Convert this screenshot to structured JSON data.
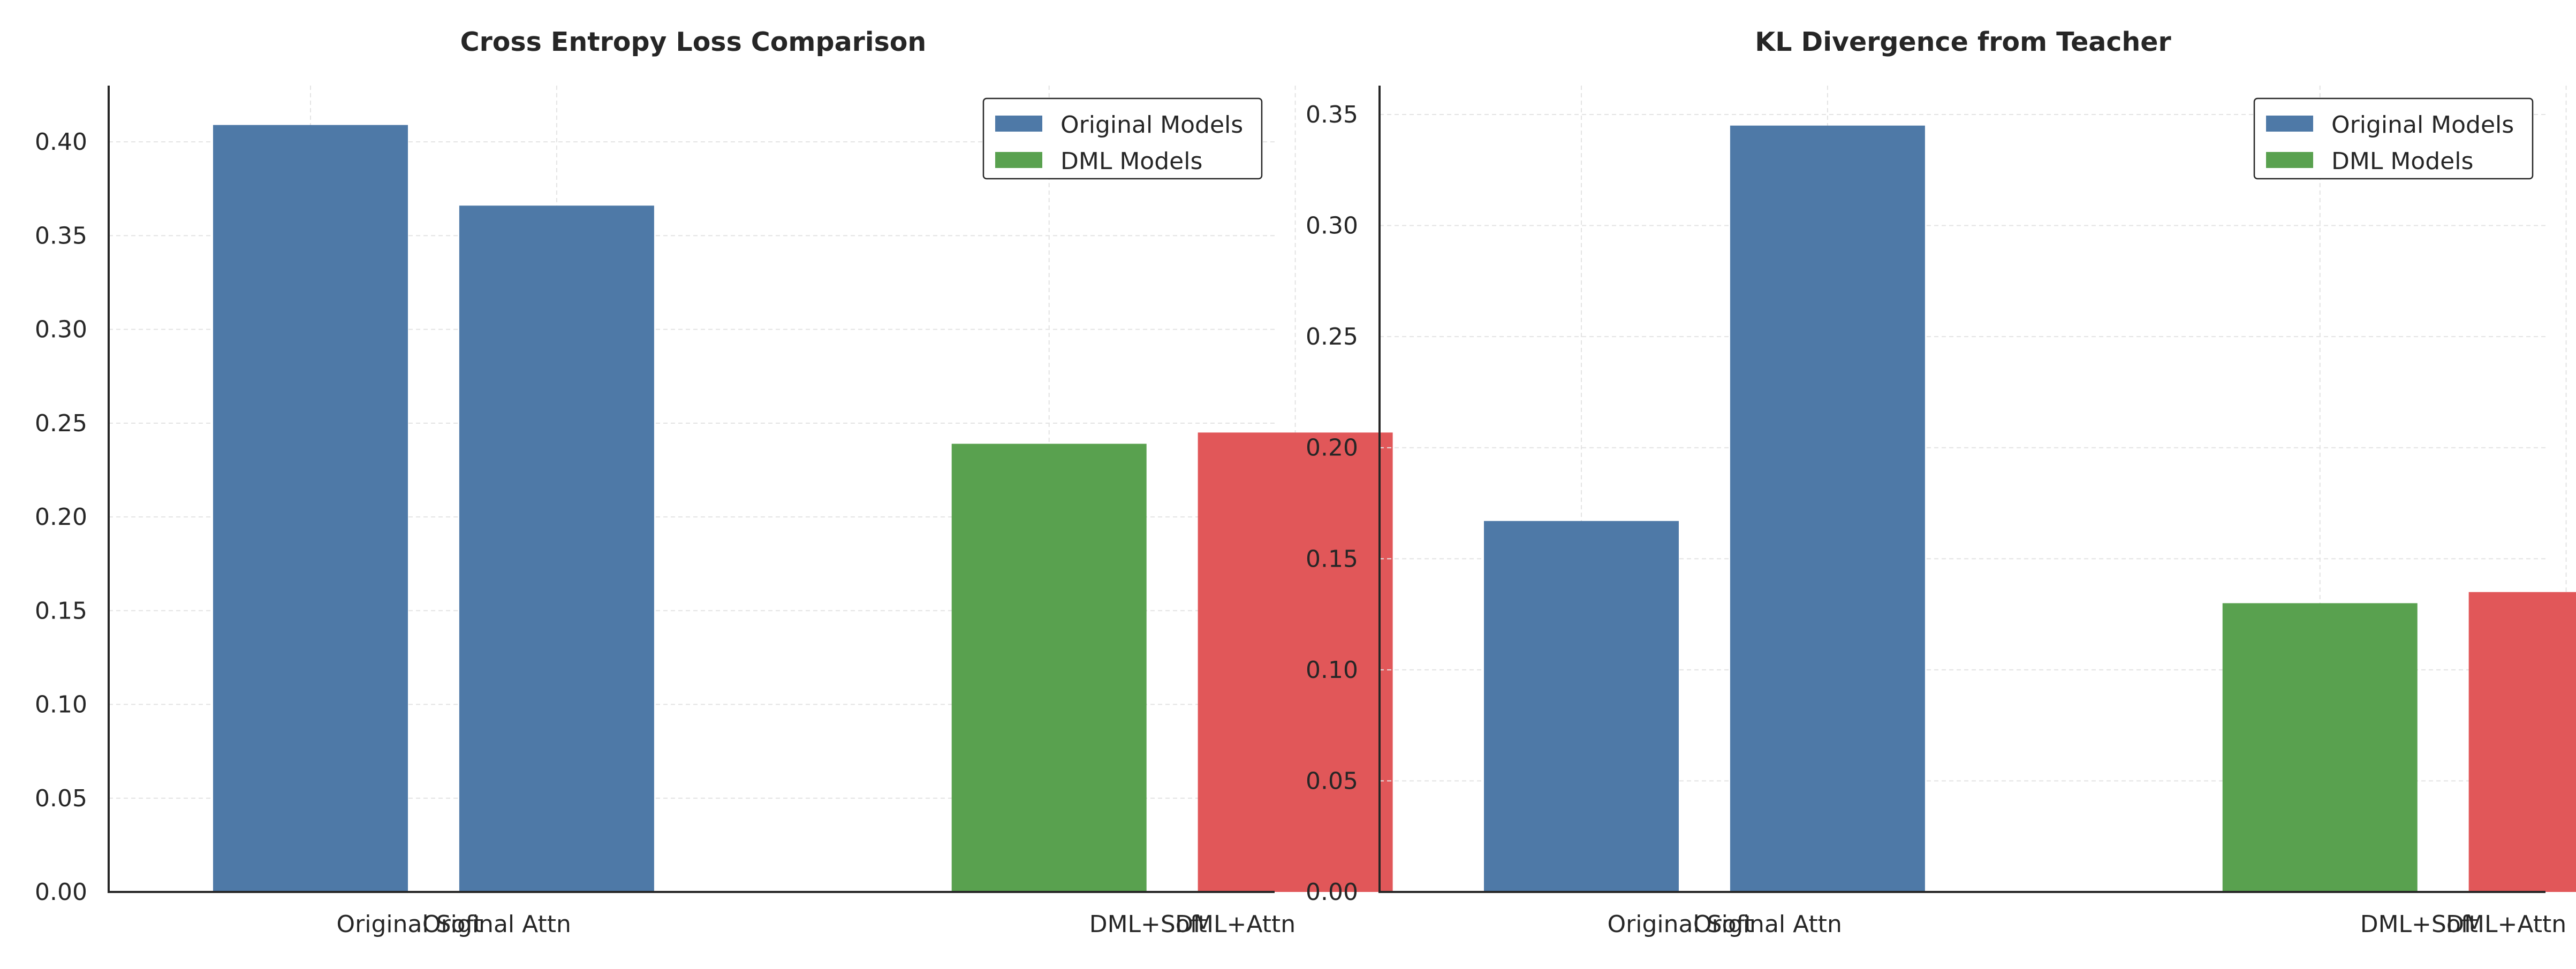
{
  "chart_data": [
    {
      "type": "bar",
      "title": "Cross Entropy Loss Comparison",
      "xlabel": "",
      "ylabel": "",
      "categories": [
        "Original Soft",
        "Original Attn",
        "DML+Soft",
        "DML+Attn"
      ],
      "values": [
        0.409,
        0.366,
        0.239,
        0.245
      ],
      "bar_colors": [
        "#4e79a7",
        "#4e79a7",
        "#59a14f",
        "#e15759"
      ],
      "ylim": [
        0,
        0.43
      ],
      "yticks": [
        "0.00",
        "0.05",
        "0.10",
        "0.15",
        "0.20",
        "0.25",
        "0.30",
        "0.35",
        "0.40"
      ],
      "ytick_values": [
        0,
        0.05,
        0.1,
        0.15,
        0.2,
        0.25,
        0.3,
        0.35,
        0.4
      ],
      "grid": true,
      "legend_position": "top-right",
      "legend": [
        {
          "label": "Original Models",
          "color": "#4e79a7"
        },
        {
          "label": "DML Models",
          "color": "#59a14f"
        }
      ]
    },
    {
      "type": "bar",
      "title": "KL Divergence from Teacher",
      "xlabel": "",
      "ylabel": "",
      "categories": [
        "Original Soft",
        "Original Attn",
        "DML+Soft",
        "DML+Attn"
      ],
      "values": [
        0.167,
        0.345,
        0.13,
        0.135
      ],
      "bar_colors": [
        "#4e79a7",
        "#4e79a7",
        "#59a14f",
        "#e15759"
      ],
      "ylim": [
        0,
        0.363
      ],
      "yticks": [
        "0.00",
        "0.05",
        "0.10",
        "0.15",
        "0.20",
        "0.25",
        "0.30",
        "0.35"
      ],
      "ytick_values": [
        0,
        0.05,
        0.1,
        0.15,
        0.2,
        0.25,
        0.3,
        0.35
      ],
      "grid": true,
      "legend_position": "top-right",
      "legend": [
        {
          "label": "Original Models",
          "color": "#4e79a7"
        },
        {
          "label": "DML Models",
          "color": "#59a14f"
        }
      ]
    }
  ]
}
